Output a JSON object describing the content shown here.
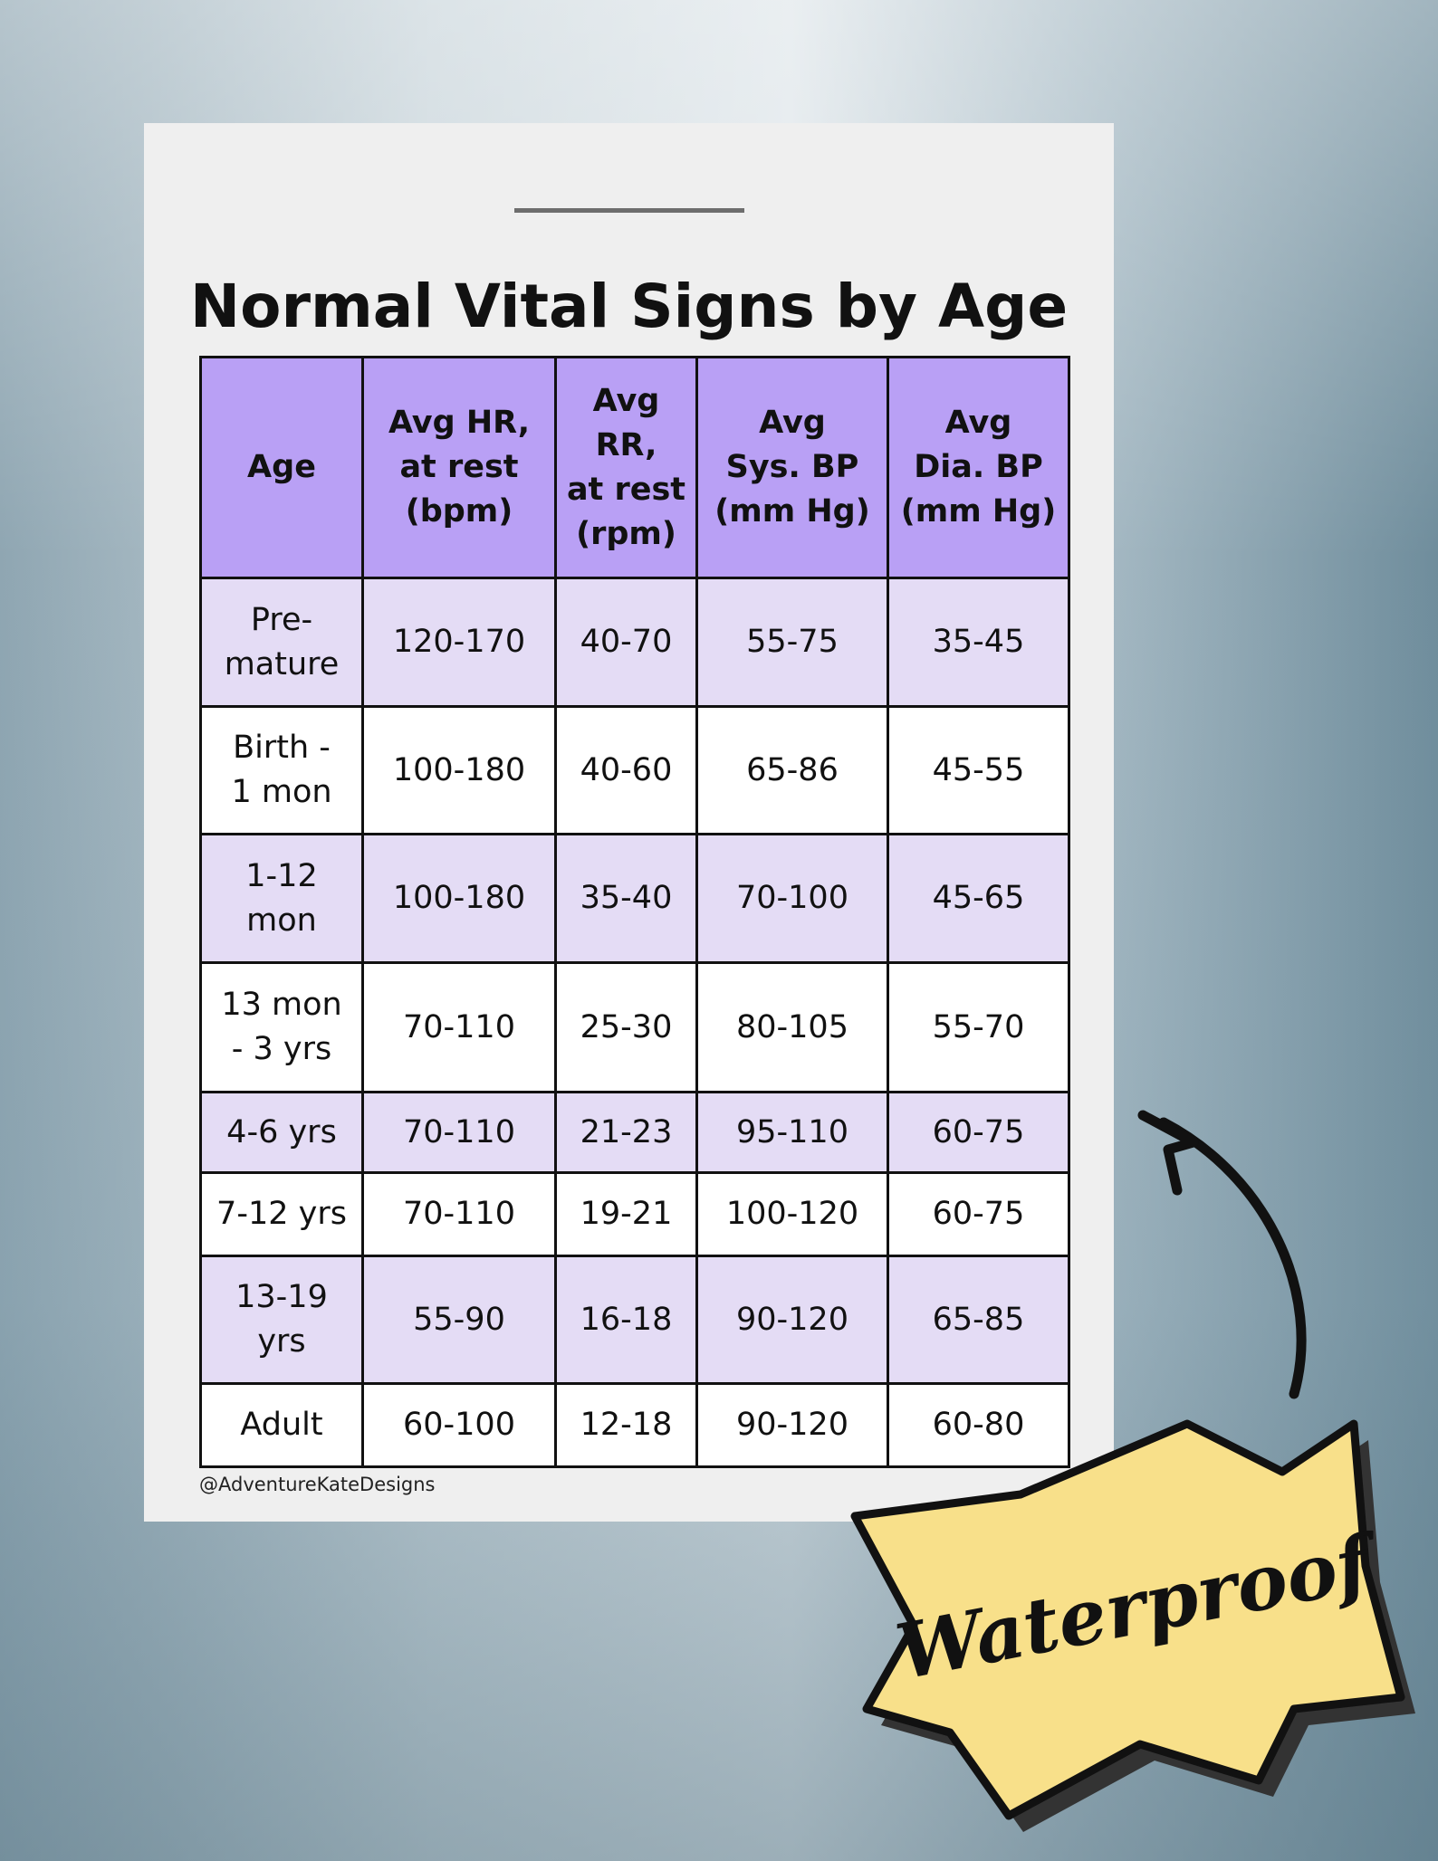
{
  "header": {
    "title": "Normal Vital Signs by Age"
  },
  "table": {
    "columns": [
      "Age",
      "Avg HR,\nat rest\n(bpm)",
      "Avg\nRR,\nat rest\n(rpm)",
      "Avg\nSys. BP\n(mm Hg)",
      "Avg\nDia. BP\n(mm Hg)"
    ],
    "rows": [
      [
        "Pre-\nmature",
        "120-170",
        "40-70",
        "55-75",
        "35-45"
      ],
      [
        "Birth -\n1 mon",
        "100-180",
        "40-60",
        "65-86",
        "45-55"
      ],
      [
        "1-12\nmon",
        "100-180",
        "35-40",
        "70-100",
        "45-65"
      ],
      [
        "13 mon\n- 3 yrs",
        "70-110",
        "25-30",
        "80-105",
        "55-70"
      ],
      [
        "4-6 yrs",
        "70-110",
        "21-23",
        "95-110",
        "60-75"
      ],
      [
        "7-12 yrs",
        "70-110",
        "19-21",
        "100-120",
        "60-75"
      ],
      [
        "13-19\nyrs",
        "55-90",
        "16-18",
        "90-120",
        "65-85"
      ],
      [
        "Adult",
        "60-100",
        "12-18",
        "90-120",
        "60-80"
      ]
    ]
  },
  "footer": {
    "credit": "@AdventureKateDesigns"
  },
  "badge": {
    "text": "Waterproof"
  }
}
